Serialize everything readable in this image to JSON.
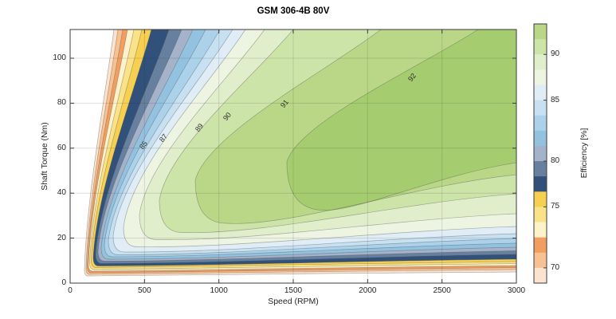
{
  "title": "GSM 306-4B 80V",
  "axes": {
    "x_label": "Speed (RPM)",
    "y_label": "Shaft Torque (Nm)",
    "x_tick_labels": [
      "0",
      "500",
      "1000",
      "1500",
      "2000",
      "2500",
      "3000"
    ],
    "y_tick_labels": [
      "0",
      "20",
      "40",
      "60",
      "80",
      "100"
    ]
  },
  "colorbar": {
    "label": "Efficiency [%]",
    "tick_labels": [
      "90",
      "85",
      "80",
      "75",
      "70"
    ]
  },
  "chart_data": {
    "type": "heatmap",
    "subtype": "filled-contour-efficiency-map",
    "title": "GSM 306-4B 80V",
    "xlabel": "Speed (RPM)",
    "ylabel": "Shaft Torque (Nm)",
    "colorbar_label": "Efficiency [%]",
    "xlim": [
      0,
      3000
    ],
    "ylim": [
      0,
      113
    ],
    "x_ticks": [
      0,
      500,
      1000,
      1500,
      2000,
      2500,
      3000
    ],
    "y_ticks": [
      0,
      20,
      40,
      60,
      80,
      100
    ],
    "colorbar_ticks": [
      90,
      85,
      80,
      75,
      70
    ],
    "grid": true,
    "legend_position": "colorbar-right",
    "efficiency_levels": [
      65,
      70,
      71,
      72,
      73,
      75,
      77,
      79,
      80,
      81,
      82,
      84,
      85,
      87,
      89,
      90,
      91,
      92
    ],
    "labeled_contour_values": [
      85,
      87,
      89,
      90,
      91,
      92
    ],
    "band_colors_low_to_high": [
      "#fbe3cd",
      "#f7c193",
      "#f29e61",
      "#fdf2c9",
      "#fae289",
      "#f7cf51",
      "#31517b",
      "#68809f",
      "#a4b2ca",
      "#93c2e1",
      "#abd2ea",
      "#c7e0f2",
      "#e0edf7",
      "#edf4e2",
      "#e0eecb",
      "#cde4a9",
      "#b9d787",
      "#a5cd70"
    ],
    "contour_top_edge_rpm_approx": [
      295,
      321,
      354,
      386,
      429,
      482,
      546,
      664,
      750,
      825,
      911,
      1007,
      1093,
      1179,
      1307,
      1500,
      2089,
      2743
    ],
    "contour_right_edge_torque_nm_approx": [
      5.0,
      6.0,
      6.9,
      7.8,
      8.7,
      9.6,
      10.6,
      12.8,
      14.4,
      16.0,
      17.7,
      19.9,
      22.0,
      25.2,
      30.9,
      39.7,
      48.2,
      53.5
    ],
    "peak_region": {
      "efficiency_percent_above": 92,
      "speed_rpm_range": [
        1500,
        3000
      ],
      "torque_nm_range": [
        30,
        100
      ]
    },
    "operating_envelope": {
      "min_speed_rpm": 95,
      "min_torque_nm": 4,
      "max_torque_nm": 113
    }
  }
}
